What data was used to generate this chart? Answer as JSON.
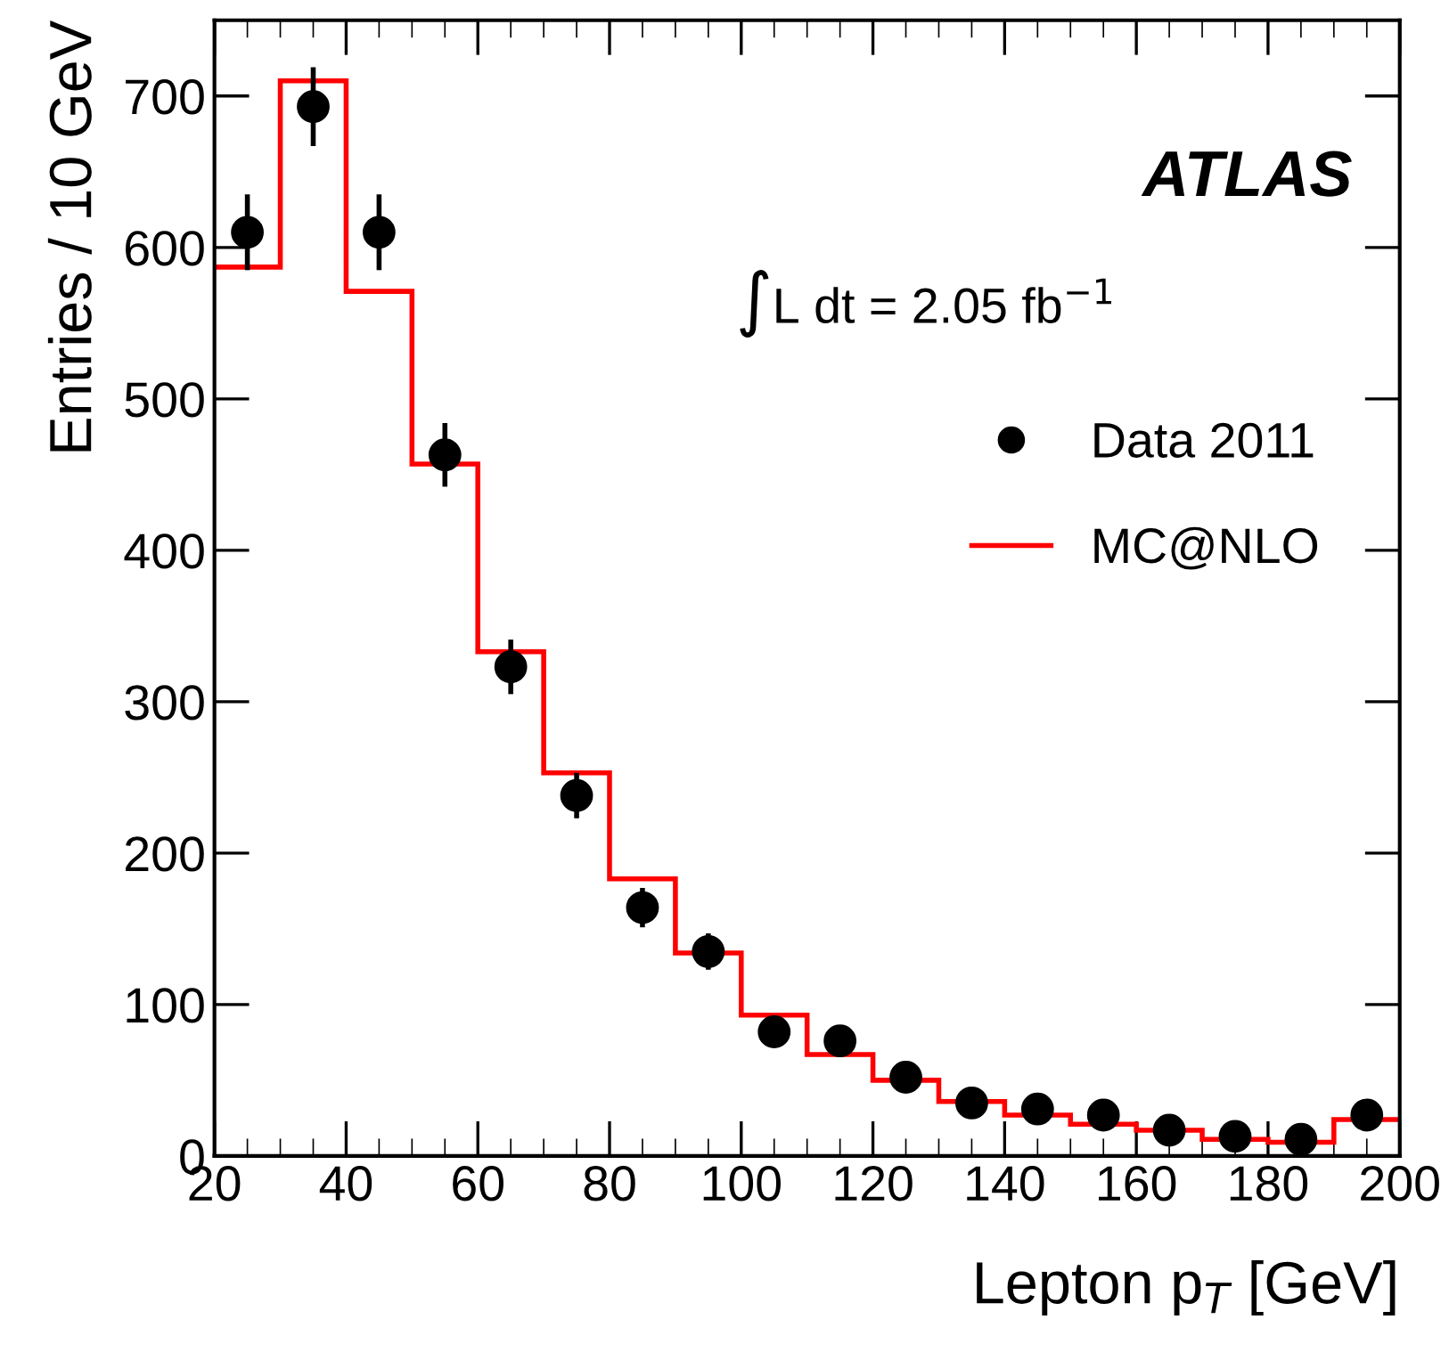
{
  "chart_data": {
    "type": "scatter",
    "xlabel": "Lepton p$_{T}$ [GeV]",
    "ylabel": "Entries / 10 GeV",
    "x": [
      25,
      35,
      45,
      55,
      65,
      75,
      85,
      95,
      105,
      115,
      125,
      135,
      145,
      155,
      165,
      175,
      185,
      195
    ],
    "series": [
      {
        "name": "Data 2011",
        "color": "#000000",
        "marker": "circle",
        "values": [
          610,
          693,
          610,
          463,
          323,
          238,
          164,
          135,
          82,
          76,
          52,
          35,
          31,
          27,
          17,
          13,
          11,
          27
        ],
        "errors": [
          25,
          26,
          25,
          21,
          18,
          15,
          13,
          12,
          9,
          9,
          7,
          6,
          6,
          5,
          4,
          4,
          3,
          5
        ]
      },
      {
        "name": "MC@NLO",
        "type": "histogram",
        "color": "#ff0000",
        "bins": [
          20,
          30,
          40,
          50,
          60,
          70,
          80,
          90,
          100,
          110,
          120,
          130,
          140,
          150,
          160,
          170,
          180,
          190,
          200
        ],
        "values": [
          587,
          710,
          571,
          457,
          333,
          253,
          183,
          134,
          93,
          67,
          50,
          36,
          27,
          21,
          17,
          11,
          9,
          24
        ]
      }
    ],
    "annotations": [
      "ATLAS",
      "∫L dt = 2.05 fb$^{−1}$"
    ],
    "xlim": [
      20,
      200
    ],
    "xticks": [
      20,
      40,
      60,
      80,
      100,
      120,
      140,
      160,
      180,
      200
    ],
    "ylim": [
      0,
      750
    ],
    "yticks": [
      0,
      100,
      200,
      300,
      400,
      500,
      600,
      700
    ],
    "grid": false,
    "legend": "right"
  }
}
